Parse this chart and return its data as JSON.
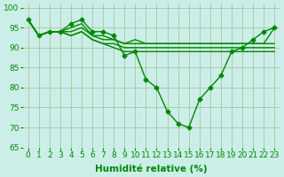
{
  "lines": [
    {
      "x": [
        0,
        1,
        2,
        3,
        4,
        5,
        6,
        7,
        8,
        9,
        10,
        11,
        12,
        13,
        14,
        15,
        16,
        17,
        18,
        19,
        20,
        21,
        22,
        23
      ],
      "y": [
        97,
        93,
        94,
        94,
        96,
        97,
        94,
        94,
        93,
        88,
        89,
        82,
        80,
        74,
        71,
        70,
        77,
        80,
        83,
        89,
        90,
        92,
        94,
        95
      ],
      "marker": "D",
      "markersize": 2.5,
      "linewidth": 1.0,
      "linestyle": "-"
    },
    {
      "x": [
        0,
        1,
        2,
        3,
        4,
        5,
        6,
        7,
        8,
        9,
        10,
        11,
        12,
        13,
        14,
        15,
        16,
        17,
        18,
        19,
        20,
        21,
        22,
        23
      ],
      "y": [
        97,
        93,
        94,
        94,
        95,
        96,
        93,
        93,
        92,
        91,
        92,
        91,
        91,
        91,
        91,
        91,
        91,
        91,
        91,
        91,
        91,
        91,
        91,
        95
      ],
      "marker": null,
      "markersize": 0,
      "linewidth": 1.0,
      "linestyle": "-"
    },
    {
      "x": [
        0,
        1,
        2,
        3,
        4,
        5,
        6,
        7,
        8,
        9,
        10,
        11,
        12,
        13,
        14,
        15,
        16,
        17,
        18,
        19,
        20,
        21,
        22,
        23
      ],
      "y": [
        97,
        93,
        94,
        94,
        94,
        95,
        93,
        92,
        92,
        91,
        91,
        91,
        91,
        91,
        91,
        91,
        91,
        91,
        91,
        91,
        91,
        91,
        91,
        91
      ],
      "marker": null,
      "markersize": 0,
      "linewidth": 1.0,
      "linestyle": "-"
    },
    {
      "x": [
        0,
        1,
        2,
        3,
        4,
        5,
        6,
        7,
        8,
        9,
        10,
        11,
        12,
        13,
        14,
        15,
        16,
        17,
        18,
        19,
        20,
        21,
        22,
        23
      ],
      "y": [
        97,
        93,
        94,
        94,
        93,
        94,
        92,
        91,
        91,
        90,
        90,
        90,
        90,
        90,
        90,
        90,
        90,
        90,
        90,
        90,
        90,
        90,
        90,
        90
      ],
      "marker": null,
      "markersize": 0,
      "linewidth": 1.0,
      "linestyle": "-"
    },
    {
      "x": [
        0,
        1,
        2,
        3,
        4,
        5,
        6,
        7,
        8,
        9,
        10,
        11,
        12,
        13,
        14,
        15,
        16,
        17,
        18,
        19,
        20,
        21,
        22,
        23
      ],
      "y": [
        97,
        93,
        94,
        94,
        93,
        94,
        92,
        91,
        90,
        89,
        89,
        89,
        89,
        89,
        89,
        89,
        89,
        89,
        89,
        89,
        89,
        89,
        89,
        89
      ],
      "marker": null,
      "markersize": 0,
      "linewidth": 1.0,
      "linestyle": "-"
    }
  ],
  "xlabel": "Humidité relative (%)",
  "xlim": [
    -0.5,
    23.5
  ],
  "ylim": [
    65,
    101
  ],
  "yticks": [
    65,
    70,
    75,
    80,
    85,
    90,
    95,
    100
  ],
  "xticks": [
    0,
    1,
    2,
    3,
    4,
    5,
    6,
    7,
    8,
    9,
    10,
    11,
    12,
    13,
    14,
    15,
    16,
    17,
    18,
    19,
    20,
    21,
    22,
    23
  ],
  "xtick_labels": [
    "0",
    "1",
    "2",
    "3",
    "4",
    "5",
    "6",
    "7",
    "8",
    "9",
    "10",
    "11",
    "12",
    "13",
    "14",
    "15",
    "16",
    "17",
    "18",
    "19",
    "20",
    "21",
    "22",
    "23"
  ],
  "grid_color": "#aaccaa",
  "bg_color": "#cceee8",
  "line_color": "#008800",
  "tick_fontsize": 6.5,
  "xlabel_fontsize": 7.5
}
